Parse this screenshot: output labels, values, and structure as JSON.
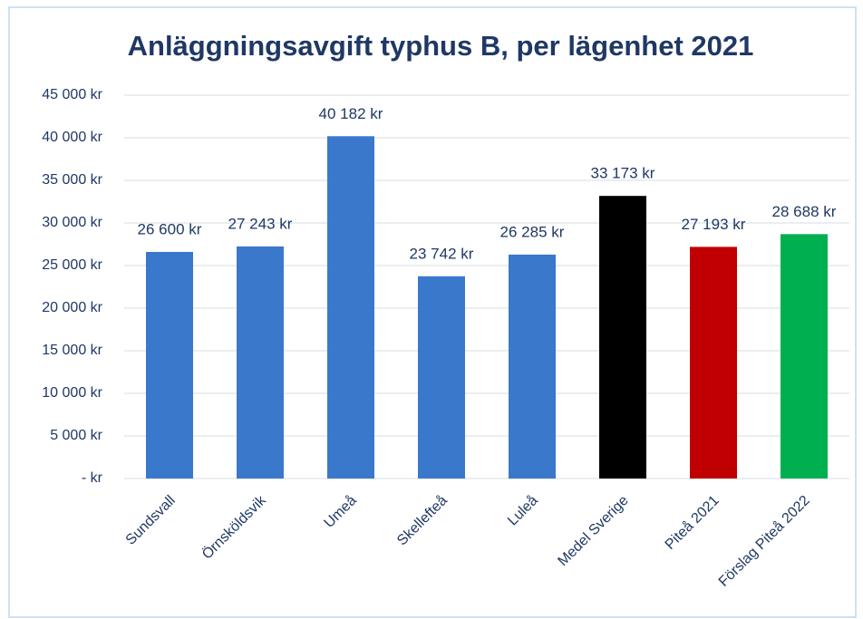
{
  "chart_data": {
    "type": "bar",
    "title": "Anläggningsavgift typhus B, per lägenhet 2021",
    "categories": [
      "Sundsvall",
      "Örnsköldsvik",
      "Umeå",
      "Skellefteå",
      "Luleå",
      "Medel Sverige",
      "Piteå 2021",
      "Förslag Piteå 2022"
    ],
    "values": [
      26600,
      27243,
      40182,
      23742,
      26285,
      33173,
      27193,
      28688
    ],
    "value_labels": [
      "26 600 kr",
      "27 243 kr",
      "40 182 kr",
      "23 742 kr",
      "26 285 kr",
      "33 173 kr",
      "27 193 kr",
      "28 688 kr"
    ],
    "colors": [
      "#3a78cc",
      "#3a78cc",
      "#3a78cc",
      "#3a78cc",
      "#3a78cc",
      "#000000",
      "#c00000",
      "#00b050"
    ],
    "ylim": [
      0,
      45000
    ],
    "yticks": [
      {
        "value": 0,
        "label": "-   kr"
      },
      {
        "value": 5000,
        "label": "5 000 kr"
      },
      {
        "value": 10000,
        "label": "10 000 kr"
      },
      {
        "value": 15000,
        "label": "15 000 kr"
      },
      {
        "value": 20000,
        "label": "20 000 kr"
      },
      {
        "value": 25000,
        "label": "25 000 kr"
      },
      {
        "value": 30000,
        "label": "30 000 kr"
      },
      {
        "value": 35000,
        "label": "35 000 kr"
      },
      {
        "value": 40000,
        "label": "40 000 kr"
      },
      {
        "value": 45000,
        "label": "45 000 kr"
      }
    ],
    "grid": true
  }
}
